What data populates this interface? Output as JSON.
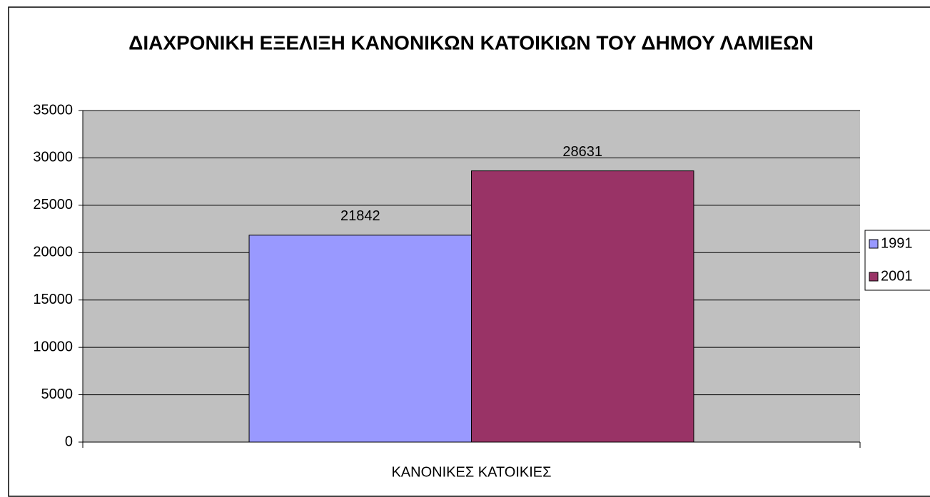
{
  "chart_data": {
    "type": "bar",
    "title": "ΔΙΑΧΡΟΝΙΚΗ ΕΞΕΛΙΞΗ ΚΑΝΟΝΙΚΩΝ ΚΑΤΟΙΚΙΩΝ ΤΟΥ ΔΗΜΟΥ ΛΑΜΙΕΩΝ",
    "categories": [
      "ΚΑΝΟΝΙΚΕΣ ΚΑΤΟΙΚΙΕΣ"
    ],
    "series": [
      {
        "name": "1991",
        "color": "#9999ff",
        "values": [
          21842
        ]
      },
      {
        "name": "2001",
        "color": "#993366",
        "values": [
          28631
        ]
      }
    ],
    "ylim": [
      0,
      35000
    ],
    "yticks": [
      0,
      5000,
      10000,
      15000,
      20000,
      25000,
      30000,
      35000
    ],
    "grid": true,
    "legend": "right"
  }
}
